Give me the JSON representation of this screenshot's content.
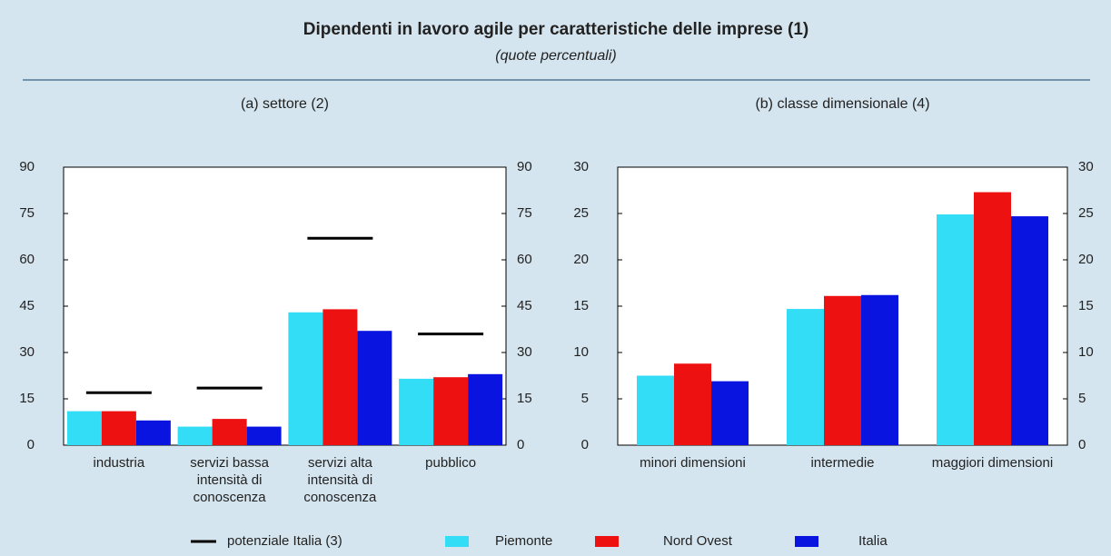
{
  "title": "Dipendenti in lavoro agile per caratteristiche delle imprese (1)",
  "subtitle": "(quote percentuali)",
  "chart_data": [
    {
      "type": "bar",
      "subtitle": "(a) settore (2)",
      "categories": [
        "industria",
        "servizi bassa intensità di conoscenza",
        "servizi alta intensità di conoscenza",
        "pubblico"
      ],
      "series": [
        {
          "name": "potenziale Italia (3)",
          "color": "#000000",
          "style": "marker",
          "values": [
            17,
            18.5,
            67,
            36
          ]
        },
        {
          "name": "Piemonte",
          "color": "#33ddf5",
          "values": [
            11,
            6,
            43,
            21.5
          ]
        },
        {
          "name": "Nord Ovest",
          "color": "#ee1111",
          "values": [
            11,
            8.5,
            44,
            22
          ]
        },
        {
          "name": "Italia",
          "color": "#0a14e0",
          "values": [
            8,
            6,
            37,
            23
          ]
        }
      ],
      "ylim": [
        0,
        90
      ],
      "yticks": [
        0,
        15,
        30,
        45,
        60,
        75,
        90
      ]
    },
    {
      "type": "bar",
      "subtitle": "(b) classe dimensionale (4)",
      "categories": [
        "minori dimensioni",
        "intermedie",
        "maggiori dimensioni"
      ],
      "series": [
        {
          "color": "#33ddf5",
          "values": [
            7.5,
            14.7,
            24.9
          ]
        },
        {
          "color": "#ee1111",
          "values": [
            8.8,
            16.1,
            27.3
          ]
        },
        {
          "color": "#0a14e0",
          "values": [
            6.9,
            16.2,
            24.7
          ]
        }
      ],
      "ylim": [
        0,
        30
      ],
      "yticks": [
        0,
        5,
        10,
        15,
        20,
        25,
        30
      ]
    }
  ]
}
